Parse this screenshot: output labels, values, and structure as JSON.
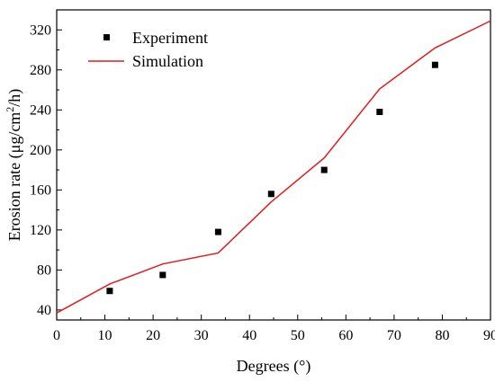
{
  "chart_data": {
    "type": "line",
    "xlabel": "Degrees (°)",
    "ylabel_parts": {
      "main": "Erosion rate (μg/cm",
      "sup": "2",
      "tail": "/h)"
    },
    "xlim": [
      0,
      90
    ],
    "ylim": [
      30,
      340
    ],
    "x_ticks": [
      0,
      10,
      20,
      30,
      40,
      50,
      60,
      70,
      80,
      90
    ],
    "y_ticks": [
      40,
      80,
      120,
      160,
      200,
      240,
      280,
      320
    ],
    "grid": false,
    "legend_position": "top-left",
    "series": [
      {
        "name": "Experiment",
        "type": "scatter",
        "color": "#000000",
        "marker": "square",
        "x": [
          11,
          22,
          33.5,
          44.5,
          55.5,
          67,
          78.5
        ],
        "y": [
          59,
          75,
          118,
          156,
          180,
          238,
          285
        ]
      },
      {
        "name": "Simulation",
        "type": "line",
        "color": "#e31a1c",
        "x": [
          0,
          11,
          22,
          33.5,
          44.5,
          55.5,
          67,
          78.5,
          90
        ],
        "y": [
          37,
          66,
          86,
          97,
          148,
          192,
          261,
          302,
          329
        ]
      }
    ]
  }
}
